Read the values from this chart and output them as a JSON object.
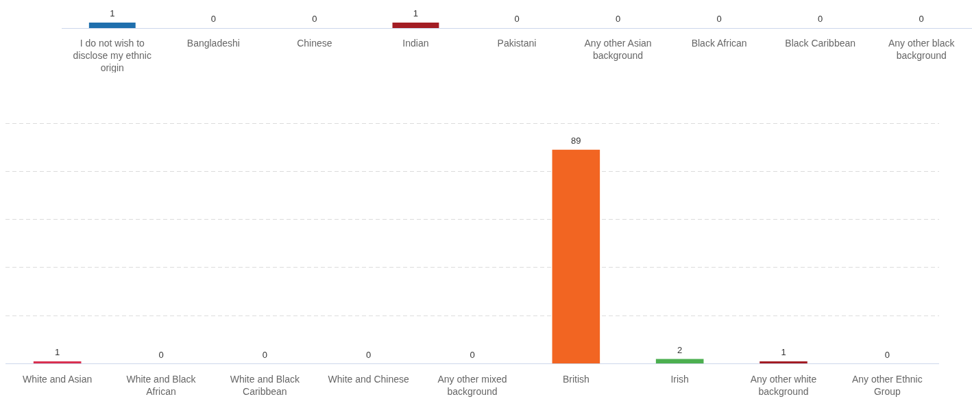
{
  "chart_data": [
    {
      "type": "bar",
      "categories": [
        "I do not wish to disclose my ethnic origin",
        "Bangladeshi",
        "Chinese",
        "Indian",
        "Pakistani",
        "Any other Asian background",
        "Black African",
        "Black Caribbean",
        "Any other black background"
      ],
      "values": [
        1,
        0,
        0,
        1,
        0,
        0,
        0,
        0,
        0
      ],
      "colors": [
        "#1f6fad",
        "#1f6fad",
        "#1f6fad",
        "#a31d24",
        "#1f6fad",
        "#1f6fad",
        "#1f6fad",
        "#1f6fad",
        "#1f6fad"
      ],
      "tick_labels": "x",
      "data_labels": true
    },
    {
      "type": "bar",
      "categories": [
        "White and Asian",
        "White and Black African",
        "White and Black Caribbean",
        "White and Chinese",
        "Any other mixed background",
        "British",
        "Irish",
        "Any other white background",
        "Any other Ethnic Group"
      ],
      "values": [
        1,
        0,
        0,
        0,
        0,
        89,
        2,
        1,
        0
      ],
      "colors": [
        "#d9304f",
        "#d9304f",
        "#d9304f",
        "#d9304f",
        "#d9304f",
        "#f26522",
        "#4caf50",
        "#a31d24",
        "#d9304f"
      ],
      "tick_labels": "x",
      "data_labels": true,
      "grid": "y"
    }
  ]
}
